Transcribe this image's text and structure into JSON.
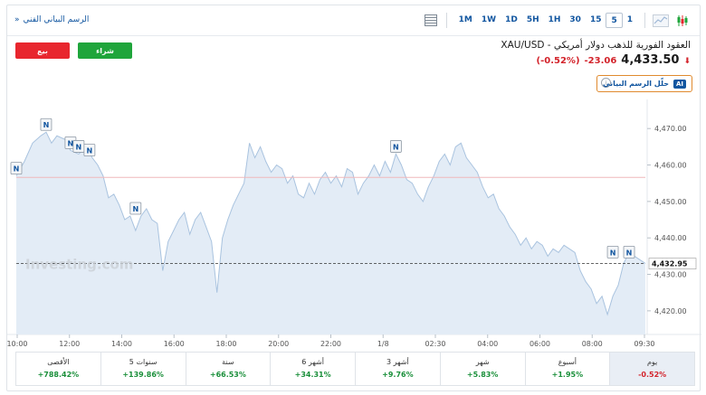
{
  "header": {
    "link_title": "الرسم البياني الفني",
    "link_arrow": "»",
    "timeframes": [
      "1M",
      "1W",
      "1D",
      "5H",
      "1H",
      "30",
      "15",
      "5",
      "1"
    ],
    "active_timeframe": "5",
    "icons": [
      "table-icon",
      "area-chart-icon",
      "candlestick-icon"
    ]
  },
  "actions": {
    "sell_label": "بيع",
    "buy_label": "شراء"
  },
  "instrument": {
    "name": "XAU/USD - العقود الفورية للذهب دولار أمريكي",
    "price": "4,433.50",
    "change": "-23.06",
    "change_pct": "(-0.52%)"
  },
  "ai": {
    "label": "حلّل الرسم البياني",
    "badge": "AI"
  },
  "watermark": "Investing.com",
  "chart_data": {
    "type": "area",
    "x_tick_labels": [
      "10:00",
      "12:00",
      "14:00",
      "16:00",
      "18:00",
      "20:00",
      "22:00",
      "1/8",
      "02:30",
      "04:00",
      "06:00",
      "08:00",
      "09:30"
    ],
    "y_tick_labels": [
      "4,420.00",
      "4,430.00",
      "4,440.00",
      "4,450.00",
      "4,460.00",
      "4,470.00"
    ],
    "ylim": [
      4416,
      4476
    ],
    "reference_line": 4456.6,
    "last_price": 4432.95,
    "last_price_label": "4,432.95",
    "series_points": [
      [
        0,
        4457
      ],
      [
        3,
        4461
      ],
      [
        6,
        4466
      ],
      [
        9,
        4468
      ],
      [
        11,
        4469
      ],
      [
        13,
        4466
      ],
      [
        15,
        4468
      ],
      [
        18,
        4467
      ],
      [
        20,
        4464
      ],
      [
        23,
        4463
      ],
      [
        26,
        4465
      ],
      [
        28,
        4462
      ],
      [
        30,
        4460
      ],
      [
        32,
        4457
      ],
      [
        34,
        4451
      ],
      [
        36,
        4452
      ],
      [
        38,
        4449
      ],
      [
        40,
        4445
      ],
      [
        42,
        4446
      ],
      [
        44,
        4442
      ],
      [
        46,
        4446
      ],
      [
        48,
        4448
      ],
      [
        50,
        4445
      ],
      [
        52,
        4444
      ],
      [
        54,
        4431
      ],
      [
        56,
        4439
      ],
      [
        58,
        4442
      ],
      [
        60,
        4445
      ],
      [
        62,
        4447
      ],
      [
        64,
        4441
      ],
      [
        66,
        4445
      ],
      [
        68,
        4447
      ],
      [
        70,
        4443
      ],
      [
        72,
        4439
      ],
      [
        74,
        4425
      ],
      [
        76,
        4440
      ],
      [
        78,
        4445
      ],
      [
        80,
        4449
      ],
      [
        82,
        4452
      ],
      [
        84,
        4455
      ],
      [
        86,
        4466
      ],
      [
        88,
        4462
      ],
      [
        90,
        4465
      ],
      [
        92,
        4461
      ],
      [
        94,
        4458
      ],
      [
        96,
        4460
      ],
      [
        98,
        4459
      ],
      [
        100,
        4455
      ],
      [
        102,
        4457
      ],
      [
        104,
        4452
      ],
      [
        106,
        4451
      ],
      [
        108,
        4455
      ],
      [
        110,
        4452
      ],
      [
        112,
        4456
      ],
      [
        114,
        4458
      ],
      [
        116,
        4455
      ],
      [
        118,
        4457
      ],
      [
        120,
        4454
      ],
      [
        122,
        4459
      ],
      [
        124,
        4458
      ],
      [
        126,
        4452
      ],
      [
        128,
        4455
      ],
      [
        130,
        4457
      ],
      [
        132,
        4460
      ],
      [
        134,
        4457
      ],
      [
        136,
        4461
      ],
      [
        138,
        4458
      ],
      [
        140,
        4463
      ],
      [
        142,
        4460
      ],
      [
        144,
        4456
      ],
      [
        146,
        4455
      ],
      [
        148,
        4452
      ],
      [
        150,
        4450
      ],
      [
        152,
        4454
      ],
      [
        154,
        4457
      ],
      [
        156,
        4461
      ],
      [
        158,
        4463
      ],
      [
        160,
        4460
      ],
      [
        162,
        4465
      ],
      [
        164,
        4466
      ],
      [
        166,
        4462
      ],
      [
        168,
        4460
      ],
      [
        170,
        4458
      ],
      [
        172,
        4454
      ],
      [
        174,
        4451
      ],
      [
        176,
        4452
      ],
      [
        178,
        4448
      ],
      [
        180,
        4446
      ],
      [
        182,
        4443
      ],
      [
        184,
        4441
      ],
      [
        186,
        4438
      ],
      [
        188,
        4440
      ],
      [
        190,
        4437
      ],
      [
        192,
        4439
      ],
      [
        194,
        4438
      ],
      [
        196,
        4435
      ],
      [
        198,
        4437
      ],
      [
        200,
        4436
      ],
      [
        202,
        4438
      ],
      [
        204,
        4437
      ],
      [
        206,
        4436
      ],
      [
        208,
        4431
      ],
      [
        210,
        4428
      ],
      [
        212,
        4426
      ],
      [
        214,
        4422
      ],
      [
        216,
        4424
      ],
      [
        218,
        4419
      ],
      [
        220,
        4424
      ],
      [
        222,
        4427
      ],
      [
        224,
        4433
      ],
      [
        226,
        4436
      ],
      [
        228,
        4435
      ],
      [
        230,
        4434
      ],
      [
        232,
        4433
      ]
    ],
    "news_markers": [
      [
        0,
        4457
      ],
      [
        11,
        4469
      ],
      [
        20,
        4464
      ],
      [
        23,
        4463
      ],
      [
        27,
        4462
      ],
      [
        44,
        4446
      ],
      [
        140,
        4463
      ],
      [
        220,
        4434
      ],
      [
        226,
        4434
      ]
    ],
    "news_label": "N"
  },
  "performance": [
    {
      "label": "يوم",
      "value": "-0.52%",
      "tone": "neg",
      "active": true
    },
    {
      "label": "أسبوع",
      "value": "+1.95%",
      "tone": "pos"
    },
    {
      "label": "شهر",
      "value": "+5.83%",
      "tone": "pos"
    },
    {
      "label": "3 أشهر",
      "value": "+9.76%",
      "tone": "pos"
    },
    {
      "label": "6 أشهر",
      "value": "+34.31%",
      "tone": "pos"
    },
    {
      "label": "سنة",
      "value": "+66.53%",
      "tone": "pos"
    },
    {
      "label": "5 سنوات",
      "value": "+139.86%",
      "tone": "pos"
    },
    {
      "label": "الأقصى",
      "value": "+788.42%",
      "tone": "pos"
    }
  ]
}
